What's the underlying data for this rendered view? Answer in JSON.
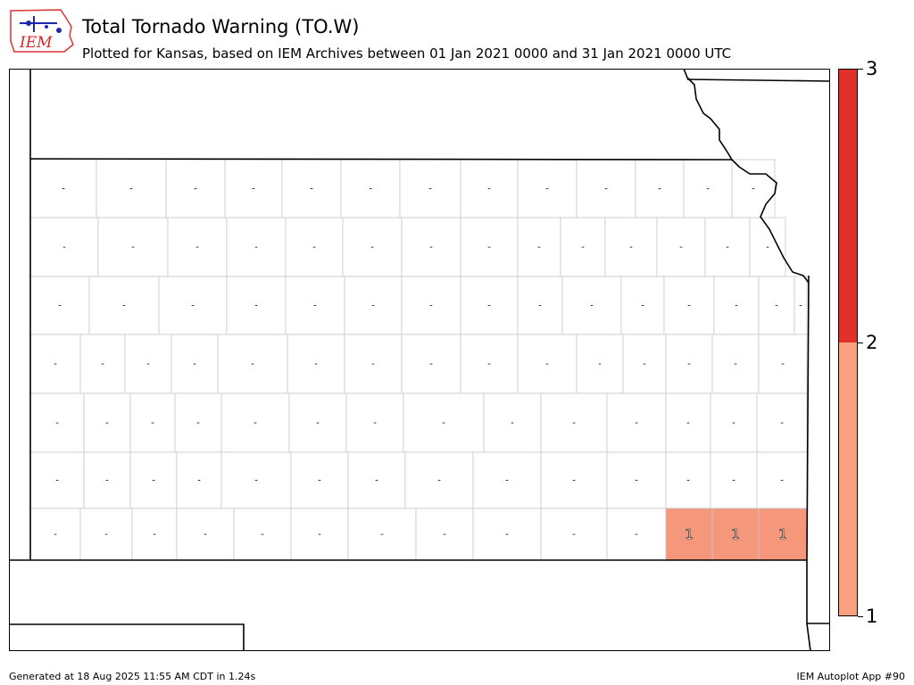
{
  "title": "Total Tornado Warning (TO.W)",
  "subtitle": "Plotted for Kansas, based on IEM Archives  between 01 Jan 2021 0000 and 31 Jan 2021 0000 UTC",
  "logo": {
    "text": "IEM",
    "icon": "iowa-environmental-mesonet-logo"
  },
  "colorbar": {
    "labels": [
      "1",
      "2",
      "3"
    ],
    "colors": [
      "#fca082",
      "#e0302a"
    ]
  },
  "counties": {
    "zero_label": "-",
    "counted_label": "1",
    "counted_fill": "#f4977a"
  },
  "footer": {
    "generated": "Generated at 18 Aug 2025 11:55 AM CDT in 1.24s",
    "app": "IEM Autoplot App #90"
  }
}
